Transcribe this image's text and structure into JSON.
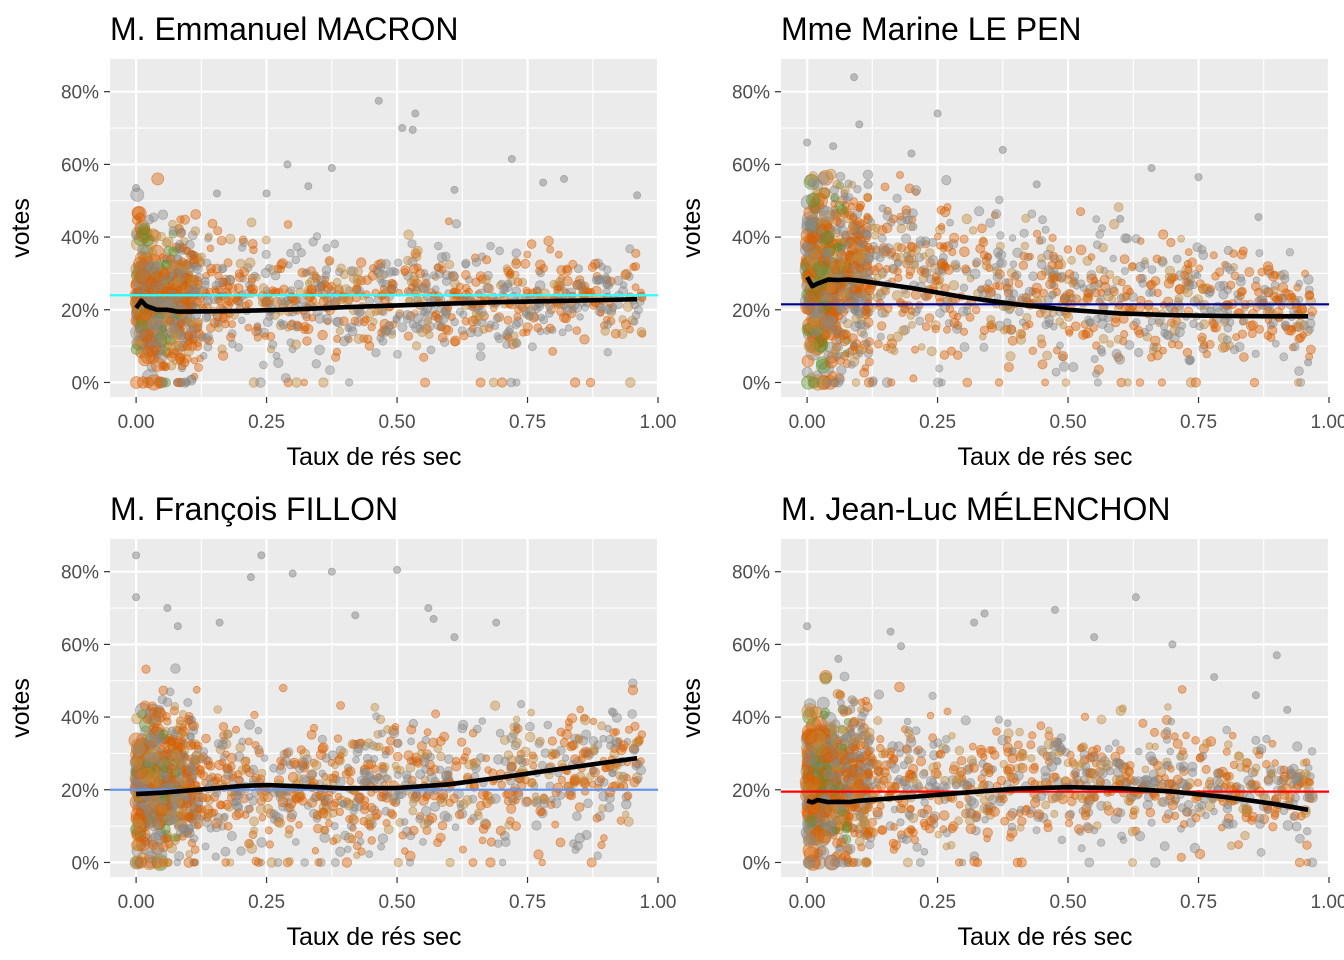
{
  "chart_data": [
    {
      "type": "scatter",
      "title": "M. Emmanuel MACRON",
      "xlabel": "Taux de rés sec",
      "ylabel": "votes",
      "xlim": [
        -0.05,
        1.0
      ],
      "ylim": [
        -0.04,
        0.89
      ],
      "x_ticks": [
        0.0,
        0.25,
        0.5,
        0.75,
        1.0
      ],
      "x_tick_labels": [
        "0.00",
        "0.25",
        "0.50",
        "0.75",
        "1.00"
      ],
      "y_ticks": [
        0.0,
        0.2,
        0.4,
        0.6,
        0.8
      ],
      "y_tick_labels": [
        "0%",
        "20%",
        "40%",
        "60%",
        "80%"
      ],
      "grid": true,
      "hline": {
        "y": 0.24,
        "color": "#33ffff"
      },
      "smooth": {
        "x": [
          0.0,
          0.01,
          0.02,
          0.04,
          0.06,
          0.08,
          0.1,
          0.2,
          0.3,
          0.4,
          0.5,
          0.6,
          0.7,
          0.8,
          0.9,
          0.96
        ],
        "y": [
          0.205,
          0.225,
          0.21,
          0.2,
          0.2,
          0.195,
          0.195,
          0.197,
          0.201,
          0.207,
          0.212,
          0.217,
          0.221,
          0.224,
          0.227,
          0.229
        ]
      },
      "cloud": {
        "base": [
          0.24,
          0.22,
          0.225,
          0.225
        ],
        "spread": [
          0.095,
          0.075,
          0.07,
          0.05
        ]
      },
      "outliers": [
        [
          0.0,
          0.535
        ],
        [
          0.465,
          0.775
        ],
        [
          0.51,
          0.7
        ],
        [
          0.535,
          0.74
        ],
        [
          0.53,
          0.695
        ],
        [
          0.375,
          0.59
        ],
        [
          0.29,
          0.6
        ],
        [
          0.72,
          0.615
        ],
        [
          0.82,
          0.56
        ],
        [
          0.96,
          0.515
        ],
        [
          0.25,
          0.52
        ],
        [
          0.61,
          0.53
        ],
        [
          0.78,
          0.55
        ],
        [
          0.33,
          0.54
        ],
        [
          0.155,
          0.52
        ]
      ]
    },
    {
      "type": "scatter",
      "title": "Mme Marine LE PEN",
      "xlabel": "Taux de rés sec",
      "ylabel": "votes",
      "xlim": [
        -0.05,
        1.0
      ],
      "ylim": [
        -0.04,
        0.89
      ],
      "x_ticks": [
        0.0,
        0.25,
        0.5,
        0.75,
        1.0
      ],
      "x_tick_labels": [
        "0.00",
        "0.25",
        "0.50",
        "0.75",
        "1.00"
      ],
      "y_ticks": [
        0.0,
        0.2,
        0.4,
        0.6,
        0.8
      ],
      "y_tick_labels": [
        "0%",
        "20%",
        "40%",
        "60%",
        "80%"
      ],
      "grid": true,
      "hline": {
        "y": 0.215,
        "color": "#00008b"
      },
      "smooth": {
        "x": [
          0.0,
          0.01,
          0.02,
          0.04,
          0.06,
          0.08,
          0.1,
          0.2,
          0.3,
          0.4,
          0.5,
          0.6,
          0.7,
          0.8,
          0.9,
          0.96
        ],
        "y": [
          0.29,
          0.265,
          0.272,
          0.283,
          0.282,
          0.283,
          0.28,
          0.26,
          0.235,
          0.215,
          0.2,
          0.19,
          0.185,
          0.183,
          0.182,
          0.182
        ]
      },
      "cloud": {
        "base": [
          0.3,
          0.28,
          0.23,
          0.195
        ],
        "spread": [
          0.13,
          0.105,
          0.085,
          0.065
        ]
      },
      "outliers": [
        [
          0.09,
          0.84
        ],
        [
          0.1,
          0.71
        ],
        [
          0.25,
          0.74
        ],
        [
          0.0,
          0.66
        ],
        [
          0.375,
          0.64
        ],
        [
          0.66,
          0.59
        ],
        [
          0.75,
          0.565
        ],
        [
          0.44,
          0.545
        ],
        [
          0.6,
          0.45
        ],
        [
          0.96,
          0.055
        ],
        [
          0.865,
          0.455
        ],
        [
          0.2,
          0.63
        ],
        [
          0.05,
          0.65
        ]
      ]
    },
    {
      "type": "scatter",
      "title": "M. François FILLON",
      "xlabel": "Taux de rés sec",
      "ylabel": "votes",
      "xlim": [
        -0.05,
        1.0
      ],
      "ylim": [
        -0.04,
        0.89
      ],
      "x_ticks": [
        0.0,
        0.25,
        0.5,
        0.75,
        1.0
      ],
      "x_tick_labels": [
        "0.00",
        "0.25",
        "0.50",
        "0.75",
        "1.00"
      ],
      "y_ticks": [
        0.0,
        0.2,
        0.4,
        0.6,
        0.8
      ],
      "y_tick_labels": [
        "0%",
        "20%",
        "40%",
        "60%",
        "80%"
      ],
      "grid": true,
      "hline": {
        "y": 0.2,
        "color": "#6495ed"
      },
      "smooth": {
        "x": [
          0.0,
          0.05,
          0.1,
          0.15,
          0.2,
          0.25,
          0.3,
          0.4,
          0.5,
          0.6,
          0.7,
          0.8,
          0.9,
          0.96
        ],
        "y": [
          0.188,
          0.192,
          0.198,
          0.204,
          0.21,
          0.213,
          0.21,
          0.204,
          0.205,
          0.215,
          0.234,
          0.255,
          0.275,
          0.287
        ]
      },
      "cloud": {
        "base": [
          0.22,
          0.2,
          0.22,
          0.29
        ],
        "spread": [
          0.1,
          0.085,
          0.09,
          0.085
        ]
      },
      "outliers": [
        [
          0.0,
          0.845
        ],
        [
          0.24,
          0.845
        ],
        [
          0.375,
          0.8
        ],
        [
          0.5,
          0.805
        ],
        [
          0.3,
          0.795
        ],
        [
          0.22,
          0.785
        ],
        [
          0.0,
          0.73
        ],
        [
          0.08,
          0.65
        ],
        [
          0.06,
          0.7
        ],
        [
          0.56,
          0.7
        ],
        [
          0.69,
          0.66
        ],
        [
          0.42,
          0.68
        ],
        [
          0.57,
          0.67
        ],
        [
          0.16,
          0.66
        ],
        [
          0.61,
          0.62
        ]
      ]
    },
    {
      "type": "scatter",
      "title": "M. Jean-Luc MÉLENCHON",
      "xlabel": "Taux de rés sec",
      "ylabel": "votes",
      "xlim": [
        -0.05,
        1.0
      ],
      "ylim": [
        -0.04,
        0.89
      ],
      "x_ticks": [
        0.0,
        0.25,
        0.5,
        0.75,
        1.0
      ],
      "x_tick_labels": [
        "0.00",
        "0.25",
        "0.50",
        "0.75",
        "1.00"
      ],
      "y_ticks": [
        0.0,
        0.2,
        0.4,
        0.6,
        0.8
      ],
      "y_tick_labels": [
        "0%",
        "20%",
        "40%",
        "60%",
        "80%"
      ],
      "grid": true,
      "hline": {
        "y": 0.195,
        "color": "#ff0000"
      },
      "smooth": {
        "x": [
          0.0,
          0.01,
          0.02,
          0.04,
          0.06,
          0.08,
          0.1,
          0.2,
          0.3,
          0.4,
          0.5,
          0.6,
          0.7,
          0.8,
          0.9,
          0.96
        ],
        "y": [
          0.17,
          0.165,
          0.172,
          0.166,
          0.167,
          0.166,
          0.17,
          0.18,
          0.192,
          0.203,
          0.207,
          0.204,
          0.195,
          0.18,
          0.16,
          0.145
        ]
      },
      "cloud": {
        "base": [
          0.23,
          0.2,
          0.22,
          0.19
        ],
        "spread": [
          0.105,
          0.085,
          0.08,
          0.065
        ]
      },
      "outliers": [
        [
          0.0,
          0.65
        ],
        [
          0.63,
          0.73
        ],
        [
          0.475,
          0.695
        ],
        [
          0.34,
          0.685
        ],
        [
          0.16,
          0.635
        ],
        [
          0.32,
          0.66
        ],
        [
          0.55,
          0.62
        ],
        [
          0.06,
          0.56
        ],
        [
          0.7,
          0.6
        ],
        [
          0.9,
          0.57
        ],
        [
          0.86,
          0.46
        ],
        [
          0.92,
          0.42
        ],
        [
          0.78,
          0.51
        ],
        [
          0.18,
          0.595
        ]
      ]
    }
  ],
  "colors": {
    "panel": "#ebebeb",
    "grid": "#ffffff",
    "point_gray": "#888888",
    "point_orange": "#d95f02",
    "point_tan": "#c08a3c",
    "point_green": "#5e8f2e",
    "smooth": "#000000"
  }
}
